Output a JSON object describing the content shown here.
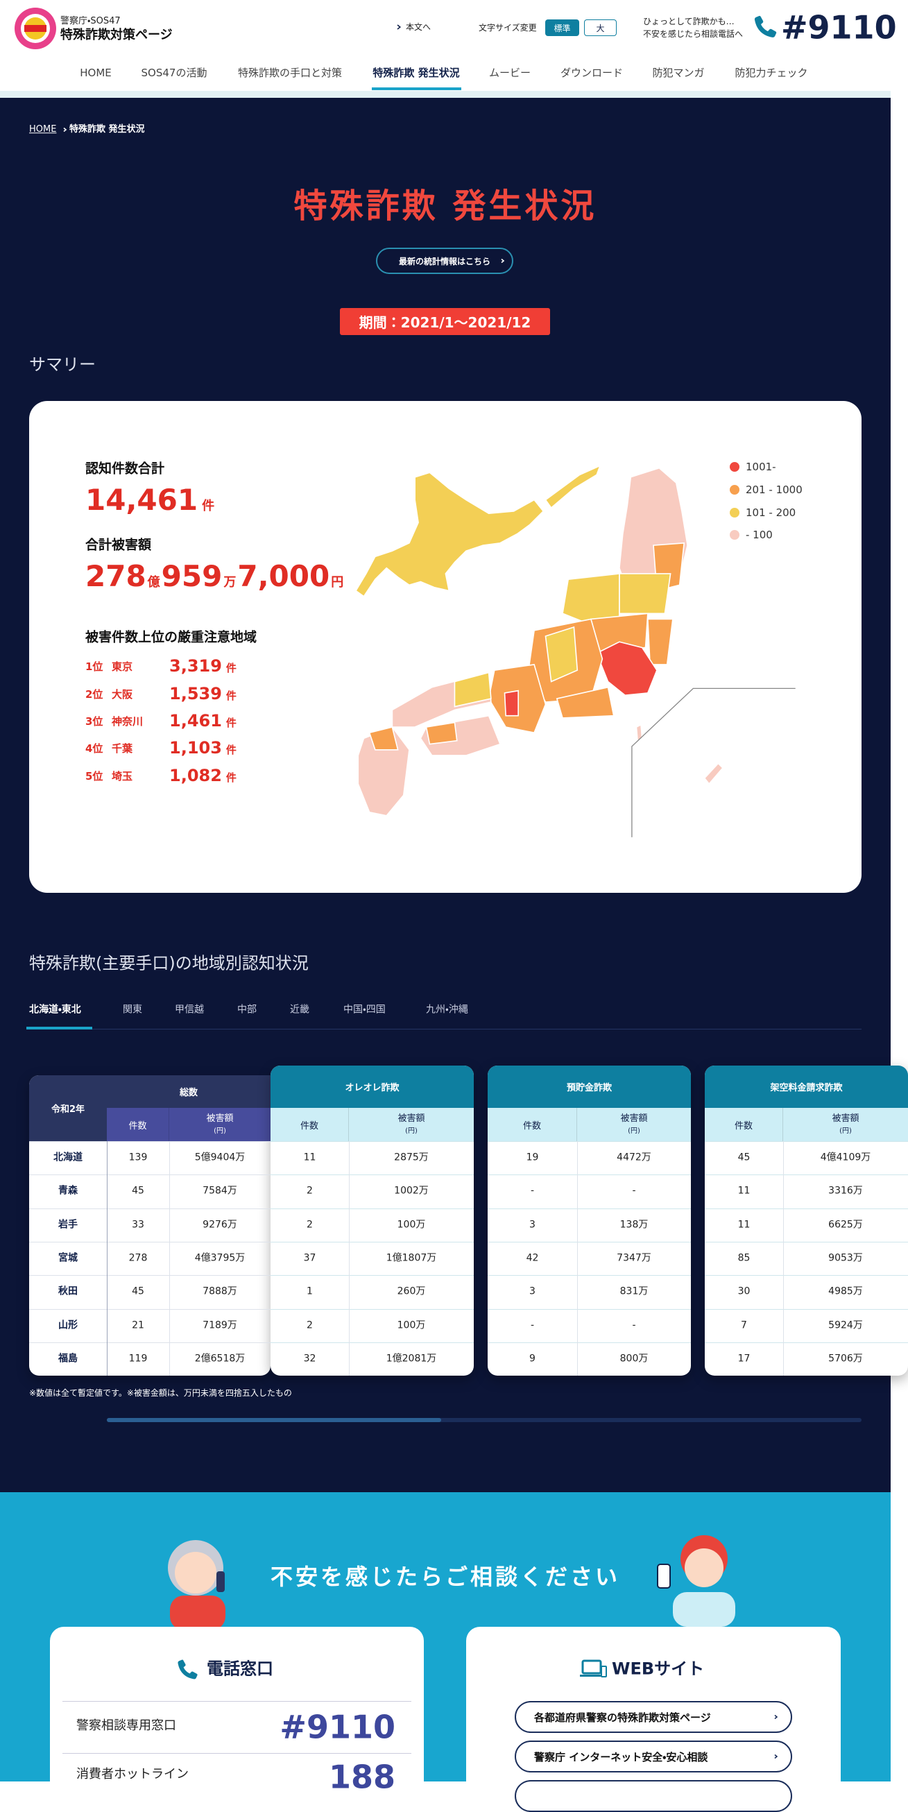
{
  "header": {
    "org": "警察庁・SOS47",
    "site_title": "特殊詐欺対策ページ",
    "skip_link": "本文へ",
    "font_size_label": "文字サイズ変更",
    "font_size_options": [
      "標準",
      "大"
    ],
    "consult_line1": "ひょっとして詐欺かも…",
    "consult_line2": "不安を感じたら相談電話へ",
    "phone": "#9110"
  },
  "nav": [
    "HOME",
    "SOS47の活動",
    "特殊詐欺の手口と対策",
    "特殊詐欺 発生状況",
    "ムービー",
    "ダウンロード",
    "防犯マンガ",
    "防犯力チェック"
  ],
  "breadcrumb": [
    "HOME",
    "特殊詐欺 発生状況"
  ],
  "page_title": "特殊詐欺 発生状況",
  "stats_link": "最新の統計情報はこちら",
  "period": "期間：2021/1〜2021/12",
  "summary": {
    "heading": "サマリー",
    "cases_label": "認知件数合計",
    "cases": "14,461",
    "cases_unit": "件",
    "damage_label": "合計被害額",
    "damage": [
      {
        "number": "278",
        "unit": "億"
      },
      {
        "number": "959",
        "unit": "万"
      },
      {
        "number": "7,000",
        "unit": "円"
      }
    ],
    "top_label": "被害件数上位の厳重注意地域",
    "top": [
      {
        "rank": "1位",
        "area": "東京",
        "count": "3,319",
        "unit": "件"
      },
      {
        "rank": "2位",
        "area": "大阪",
        "count": "1,539",
        "unit": "件"
      },
      {
        "rank": "3位",
        "area": "神奈川",
        "count": "1,461",
        "unit": "件"
      },
      {
        "rank": "4位",
        "area": "千葉",
        "count": "1,103",
        "unit": "件"
      },
      {
        "rank": "5位",
        "area": "埼玉",
        "count": "1,082",
        "unit": "件"
      }
    ],
    "legend": [
      {
        "label": "1001-",
        "color": "#f0483e"
      },
      {
        "label": "201 - 1000",
        "color": "#f7a04e"
      },
      {
        "label": "101 - 200",
        "color": "#f3cf55"
      },
      {
        "label": "- 100",
        "color": "#f8cbc0"
      }
    ]
  },
  "regional": {
    "heading": "特殊詐欺(主要手口)の地域別認知状況",
    "tabs": [
      "北海道・東北",
      "関東",
      "甲信越",
      "中部",
      "近畿",
      "中国・四国",
      "九州・沖縄"
    ],
    "table": {
      "corner": "令和2年",
      "groups": [
        {
          "name": "総数",
          "count_header": "件数",
          "amount_header": "被害額",
          "amount_unit": "(円)"
        },
        {
          "name": "オレオレ詐欺",
          "count_header": "件数",
          "amount_header": "被害額",
          "amount_unit": "(円)"
        },
        {
          "name": "預貯金詐欺",
          "count_header": "件数",
          "amount_header": "被害額",
          "amount_unit": "(円)"
        },
        {
          "name": "架空料金請求詐欺",
          "count_header": "件数",
          "amount_header": "被害額",
          "amount_unit": "(円)"
        }
      ],
      "rows": [
        [
          "北海道",
          "139",
          "5億9404万",
          "11",
          "2875万",
          "19",
          "4472万",
          "45",
          "4億4109万"
        ],
        [
          "青森",
          "45",
          "7584万",
          "2",
          "1002万",
          "-",
          "-",
          "11",
          "3316万"
        ],
        [
          "岩手",
          "33",
          "9276万",
          "2",
          "100万",
          "3",
          "138万",
          "11",
          "6625万"
        ],
        [
          "宮城",
          "278",
          "4億3795万",
          "37",
          "1億1807万",
          "42",
          "7347万",
          "85",
          "9053万"
        ],
        [
          "秋田",
          "45",
          "7888万",
          "1",
          "260万",
          "3",
          "831万",
          "30",
          "4985万"
        ],
        [
          "山形",
          "21",
          "7189万",
          "2",
          "100万",
          "-",
          "-",
          "7",
          "5924万"
        ],
        [
          "福島",
          "119",
          "2億6518万",
          "32",
          "1億2081万",
          "9",
          "800万",
          "17",
          "5706万"
        ]
      ]
    },
    "note": "※数値は全て暫定値です。※被害金額は、万円未満を四捨五入したもの"
  },
  "consult": {
    "heading": "不安を感じたらご相談ください",
    "phone_title": "電話窓口",
    "phone_rows": [
      {
        "label": "警察相談専用窓口",
        "number": "#9110"
      },
      {
        "label": "消費者ホットライン",
        "number": "188"
      }
    ],
    "web_title": "WEBサイト",
    "web_links": [
      "各都道府県警察の特殊詐欺対策ページ",
      "警察庁 インターネット安全・安心相談"
    ]
  }
}
